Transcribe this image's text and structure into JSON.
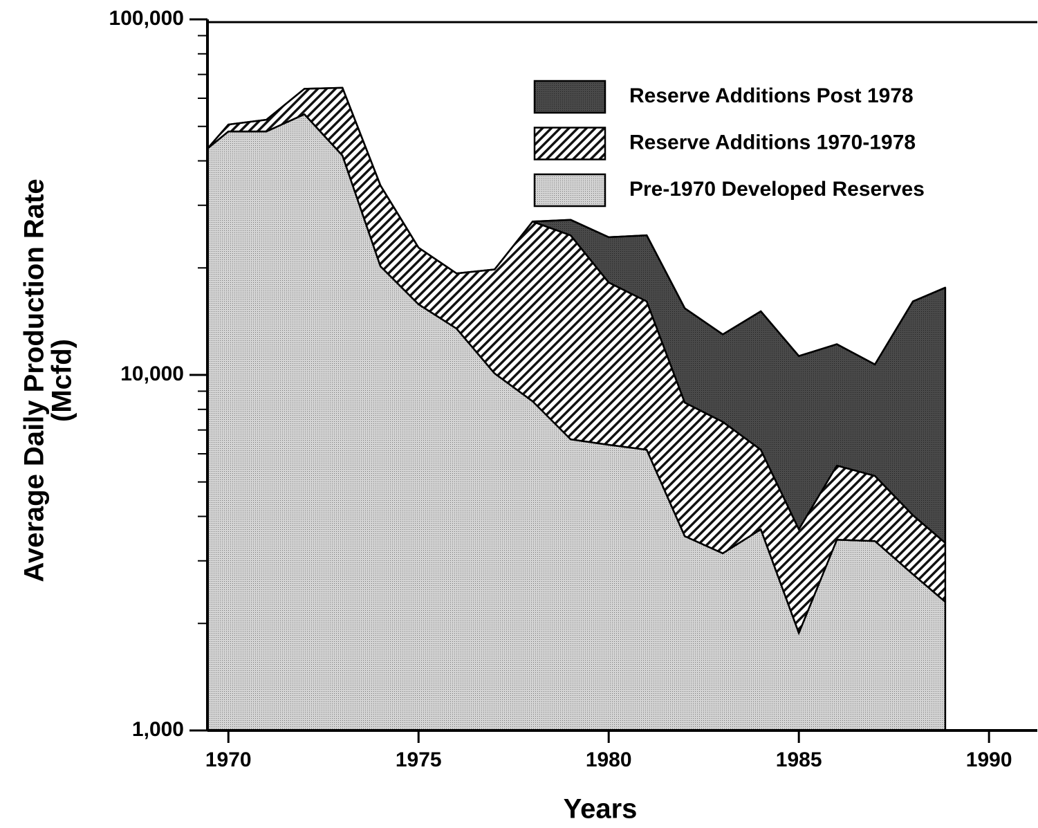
{
  "chart_data": {
    "type": "stacked_area",
    "xlabel": "Years",
    "ylabel": [
      "Average Daily Production Rate",
      "(Mcfd)"
    ],
    "x": [
      1969.45,
      1970,
      1971,
      1972,
      1973,
      1974,
      1975,
      1976,
      1977,
      1978,
      1979,
      1980,
      1981,
      1982,
      1983,
      1984,
      1985,
      1986,
      1987,
      1988,
      1988.85
    ],
    "series": [
      {
        "name": "Pre-1970 Developed  Reserves",
        "color": "#d4d4d4",
        "pattern": "dots",
        "values": [
          43300,
          48400,
          48400,
          54100,
          41400,
          20200,
          15800,
          13500,
          10100,
          8430,
          6590,
          6360,
          6160,
          3520,
          3150,
          3680,
          1880,
          3440,
          3410,
          2750,
          2300
        ]
      },
      {
        "name": "Reserve Additions 1970-1978",
        "color": "#ffffff",
        "pattern": "hatch",
        "values": [
          0,
          2200,
          3800,
          9700,
          22800,
          13900,
          7000,
          5800,
          9700,
          18570,
          18110,
          11840,
          9940,
          4840,
          4230,
          2480,
          1800,
          2120,
          1790,
          1280,
          1070
        ]
      },
      {
        "name": "Reserve Additions Post 1978",
        "color": "#4a4a4a",
        "pattern": "dots",
        "values": [
          null,
          null,
          null,
          null,
          null,
          null,
          null,
          null,
          null,
          0,
          2600,
          6200,
          8600,
          7040,
          5620,
          8940,
          7620,
          6640,
          5500,
          12070,
          14230
        ]
      }
    ],
    "log_y": true,
    "xlim": [
      1969.45,
      1991.27
    ],
    "xticks": [
      1970,
      1975,
      1980,
      1985,
      1990
    ],
    "ylim": [
      1000,
      100000
    ],
    "yticks": [
      {
        "value": 1000,
        "label": "1,000"
      },
      {
        "value": 10000,
        "label": "10,000"
      },
      {
        "value": 100000,
        "label": "100,000"
      }
    ],
    "yminorticks": [
      2000,
      3000,
      4000,
      5000,
      6000,
      7000,
      8000,
      9000,
      20000,
      30000,
      40000,
      50000,
      60000,
      70000,
      80000,
      90000
    ],
    "legend": "upper right"
  }
}
